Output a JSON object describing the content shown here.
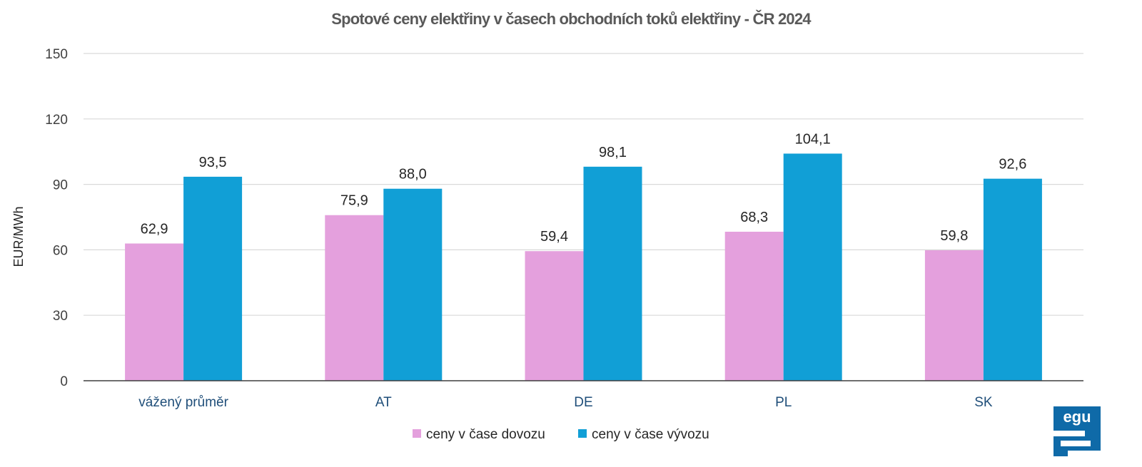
{
  "chart_data": {
    "type": "bar",
    "title": "Spotové ceny elektřiny v časech obchodních toků elektřiny - ČR 2024",
    "ylabel": "EUR/MWh",
    "xlabel": "",
    "ylim": [
      0,
      150
    ],
    "yticks": [
      "0",
      "30",
      "60",
      "90",
      "120",
      "150"
    ],
    "categories": [
      "vážený průměr",
      "AT",
      "DE",
      "PL",
      "SK"
    ],
    "series": [
      {
        "name": "ceny v čase dovozu",
        "values": [
          62.9,
          75.9,
          59.4,
          68.3,
          59.8
        ],
        "labels": [
          "62,9",
          "75,9",
          "59,4",
          "68,3",
          "59,8"
        ],
        "color": "#e4a0dd"
      },
      {
        "name": "ceny v čase vývozu",
        "values": [
          93.5,
          88.0,
          98.1,
          104.1,
          92.6
        ],
        "labels": [
          "93,5",
          "88,0",
          "98,1",
          "104,1",
          "92,6"
        ],
        "color": "#119fd6"
      }
    ],
    "grid": true,
    "legend_position": "bottom"
  },
  "logo": {
    "text": "egu",
    "color": "#0f6aa8"
  }
}
